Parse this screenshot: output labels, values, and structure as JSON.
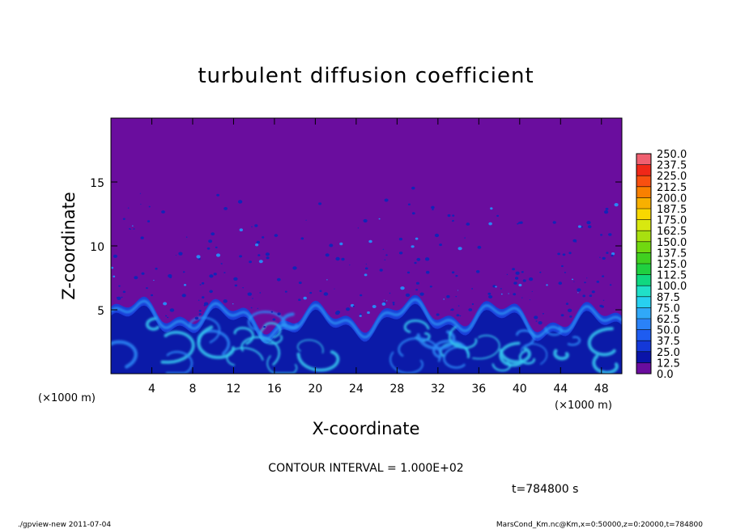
{
  "chart_data": {
    "type": "heatmap",
    "title": "turbulent diffusion coefficient",
    "xlabel": "X-coordinate",
    "ylabel": "Z-coordinate",
    "xlim": [
      0,
      50
    ],
    "ylim": [
      0,
      20
    ],
    "x_unit": "(×1000 m)",
    "y_unit": "(×1000 m)",
    "x_ticks": [
      4,
      8,
      12,
      16,
      20,
      24,
      28,
      32,
      36,
      40,
      44,
      48
    ],
    "y_ticks": [
      5,
      10,
      15
    ],
    "colorbar": {
      "levels": [
        "0.0",
        "12.5",
        "25.0",
        "37.5",
        "50.0",
        "62.5",
        "75.0",
        "87.5",
        "100.0",
        "112.5",
        "125.0",
        "137.5",
        "150.0",
        "162.5",
        "175.0",
        "187.5",
        "200.0",
        "212.5",
        "225.0",
        "237.5",
        "250.0"
      ],
      "colors": [
        "#6a0d9e",
        "#0a14a8",
        "#1438d8",
        "#1e5cf0",
        "#2a82f8",
        "#30a8f8",
        "#28d0f0",
        "#20e0c8",
        "#10d880",
        "#20d040",
        "#40d020",
        "#70d810",
        "#a8e010",
        "#d8e810",
        "#f8d800",
        "#f8b000",
        "#f88000",
        "#f85010",
        "#f02818",
        "#f06070"
      ]
    },
    "series_note": "",
    "contour_interval": "CONTOUR INTERVAL = 1.000E+02",
    "time": "t=784800 s",
    "footer_left": "./gpview-new   2011-07-04",
    "footer_right": "MarsCond_Km.nc@Km,x=0:50000,z=0:20000,t=784800",
    "colors": {
      "background_value": "#6a0d9e",
      "low_band": "#0b1aa8",
      "bright_band": "#35c8f0"
    }
  }
}
